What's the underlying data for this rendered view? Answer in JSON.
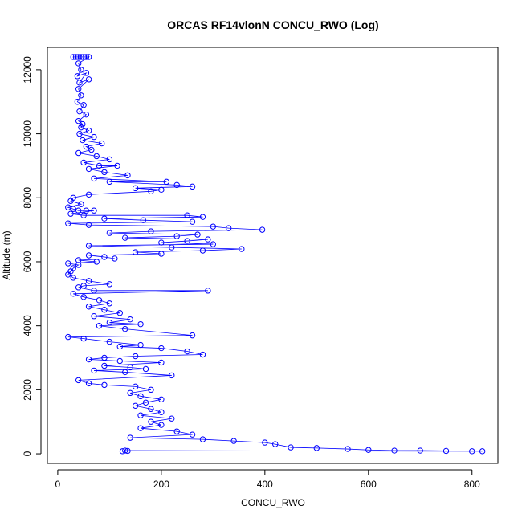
{
  "chart_data": {
    "type": "scatter",
    "title": "ORCAS RF14vlonN CONCU_RWO (Log)",
    "xlabel": "CONCU_RWO",
    "ylabel": "Altitude (m)",
    "xlim": [
      -20,
      850
    ],
    "ylim": [
      -300,
      12700
    ],
    "xticks": [
      0,
      200,
      400,
      600,
      800
    ],
    "yticks": [
      0,
      2000,
      4000,
      6000,
      8000,
      10000,
      12000
    ],
    "grid": false,
    "legend": "none",
    "series": [
      {
        "color": "#0000ff",
        "marker": "open-circle",
        "connected": true,
        "points": [
          [
            30,
            12400
          ],
          [
            35,
            12400
          ],
          [
            40,
            12400
          ],
          [
            45,
            12400
          ],
          [
            50,
            12400
          ],
          [
            55,
            12400
          ],
          [
            60,
            12400
          ],
          [
            40,
            12200
          ],
          [
            45,
            12000
          ],
          [
            38,
            11800
          ],
          [
            55,
            11900
          ],
          [
            42,
            11600
          ],
          [
            60,
            11700
          ],
          [
            40,
            11400
          ],
          [
            45,
            11200
          ],
          [
            38,
            11000
          ],
          [
            50,
            10900
          ],
          [
            42,
            10700
          ],
          [
            55,
            10600
          ],
          [
            40,
            10400
          ],
          [
            48,
            10300
          ],
          [
            45,
            10200
          ],
          [
            60,
            10100
          ],
          [
            42,
            10000
          ],
          [
            70,
            9900
          ],
          [
            48,
            9800
          ],
          [
            85,
            9700
          ],
          [
            55,
            9600
          ],
          [
            65,
            9500
          ],
          [
            40,
            9400
          ],
          [
            75,
            9300
          ],
          [
            100,
            9200
          ],
          [
            50,
            9100
          ],
          [
            80,
            9000
          ],
          [
            115,
            9000
          ],
          [
            60,
            8900
          ],
          [
            90,
            8800
          ],
          [
            135,
            8700
          ],
          [
            70,
            8600
          ],
          [
            210,
            8500
          ],
          [
            100,
            8500
          ],
          [
            230,
            8400
          ],
          [
            260,
            8350
          ],
          [
            150,
            8300
          ],
          [
            200,
            8250
          ],
          [
            180,
            8200
          ],
          [
            60,
            8100
          ],
          [
            30,
            8000
          ],
          [
            25,
            7900
          ],
          [
            45,
            7800
          ],
          [
            20,
            7700
          ],
          [
            30,
            7650
          ],
          [
            40,
            7600
          ],
          [
            55,
            7600
          ],
          [
            70,
            7600
          ],
          [
            25,
            7500
          ],
          [
            50,
            7450
          ],
          [
            250,
            7450
          ],
          [
            280,
            7400
          ],
          [
            90,
            7350
          ],
          [
            165,
            7300
          ],
          [
            260,
            7250
          ],
          [
            20,
            7200
          ],
          [
            60,
            7150
          ],
          [
            300,
            7100
          ],
          [
            330,
            7050
          ],
          [
            395,
            7000
          ],
          [
            180,
            6950
          ],
          [
            100,
            6900
          ],
          [
            270,
            6850
          ],
          [
            230,
            6800
          ],
          [
            130,
            6750
          ],
          [
            290,
            6700
          ],
          [
            250,
            6650
          ],
          [
            200,
            6600
          ],
          [
            300,
            6550
          ],
          [
            60,
            6500
          ],
          [
            220,
            6450
          ],
          [
            355,
            6400
          ],
          [
            280,
            6350
          ],
          [
            150,
            6300
          ],
          [
            200,
            6250
          ],
          [
            60,
            6200
          ],
          [
            90,
            6150
          ],
          [
            110,
            6100
          ],
          [
            40,
            6050
          ],
          [
            75,
            6000
          ],
          [
            20,
            5950
          ],
          [
            40,
            5900
          ],
          [
            30,
            5800
          ],
          [
            25,
            5700
          ],
          [
            20,
            5600
          ],
          [
            30,
            5500
          ],
          [
            60,
            5400
          ],
          [
            100,
            5300
          ],
          [
            50,
            5250
          ],
          [
            40,
            5200
          ],
          [
            70,
            5100
          ],
          [
            290,
            5100
          ],
          [
            30,
            5000
          ],
          [
            50,
            4900
          ],
          [
            80,
            4800
          ],
          [
            100,
            4700
          ],
          [
            60,
            4600
          ],
          [
            90,
            4500
          ],
          [
            120,
            4400
          ],
          [
            70,
            4300
          ],
          [
            140,
            4200
          ],
          [
            100,
            4100
          ],
          [
            160,
            4050
          ],
          [
            80,
            4000
          ],
          [
            130,
            3900
          ],
          [
            260,
            3700
          ],
          [
            20,
            3650
          ],
          [
            50,
            3600
          ],
          [
            100,
            3500
          ],
          [
            160,
            3400
          ],
          [
            120,
            3350
          ],
          [
            200,
            3300
          ],
          [
            250,
            3200
          ],
          [
            280,
            3100
          ],
          [
            150,
            3050
          ],
          [
            90,
            3000
          ],
          [
            60,
            2950
          ],
          [
            120,
            2900
          ],
          [
            200,
            2850
          ],
          [
            90,
            2750
          ],
          [
            140,
            2700
          ],
          [
            170,
            2650
          ],
          [
            70,
            2600
          ],
          [
            130,
            2550
          ],
          [
            220,
            2450
          ],
          [
            40,
            2300
          ],
          [
            60,
            2200
          ],
          [
            90,
            2150
          ],
          [
            150,
            2100
          ],
          [
            180,
            2000
          ],
          [
            140,
            1900
          ],
          [
            160,
            1800
          ],
          [
            200,
            1700
          ],
          [
            170,
            1600
          ],
          [
            150,
            1500
          ],
          [
            180,
            1400
          ],
          [
            200,
            1300
          ],
          [
            160,
            1200
          ],
          [
            220,
            1100
          ],
          [
            180,
            1000
          ],
          [
            200,
            900
          ],
          [
            160,
            800
          ],
          [
            230,
            700
          ],
          [
            260,
            600
          ],
          [
            140,
            500
          ],
          [
            280,
            450
          ],
          [
            340,
            400
          ],
          [
            400,
            350
          ],
          [
            420,
            300
          ],
          [
            450,
            200
          ],
          [
            500,
            180
          ],
          [
            560,
            150
          ],
          [
            600,
            120
          ],
          [
            650,
            100
          ],
          [
            700,
            100
          ],
          [
            750,
            90
          ],
          [
            800,
            80
          ],
          [
            820,
            80
          ],
          [
            130,
            100
          ],
          [
            125,
            80
          ],
          [
            135,
            90
          ]
        ]
      }
    ]
  }
}
